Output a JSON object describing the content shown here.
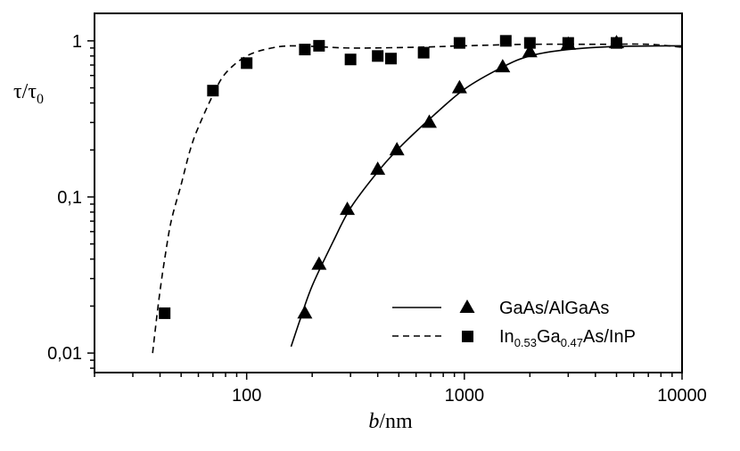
{
  "chart_data": {
    "type": "scatter",
    "xscale": "log",
    "yscale": "log",
    "xlim": [
      20,
      10000
    ],
    "ylim": [
      0.0075,
      1.5
    ],
    "xlabel": {
      "italic": "b",
      "rest": "/nm"
    },
    "ylabel": {
      "a": "τ/τ",
      "sub": "0"
    },
    "xticks": [
      {
        "value": 100,
        "label": "100"
      },
      {
        "value": 1000,
        "label": "1000"
      },
      {
        "value": 10000,
        "label": "10000"
      }
    ],
    "yticks": [
      {
        "value": 0.01,
        "label": "0,01"
      },
      {
        "value": 0.1,
        "label": "0,1"
      },
      {
        "value": 1,
        "label": "1"
      }
    ],
    "legend_position": "bottom-right",
    "series": [
      {
        "legend": {
          "text": "GaAs/AlGaAs"
        },
        "marker": "triangle",
        "line": "solid",
        "points": [
          {
            "x": 185,
            "y": 0.018
          },
          {
            "x": 215,
            "y": 0.037
          },
          {
            "x": 290,
            "y": 0.083
          },
          {
            "x": 400,
            "y": 0.15
          },
          {
            "x": 490,
            "y": 0.2
          },
          {
            "x": 690,
            "y": 0.3
          },
          {
            "x": 950,
            "y": 0.5
          },
          {
            "x": 1500,
            "y": 0.68
          },
          {
            "x": 2000,
            "y": 0.85
          },
          {
            "x": 3000,
            "y": 0.95
          },
          {
            "x": 5000,
            "y": 0.97
          }
        ],
        "curve": [
          {
            "x": 160,
            "y": 0.011
          },
          {
            "x": 175,
            "y": 0.016
          },
          {
            "x": 200,
            "y": 0.027
          },
          {
            "x": 250,
            "y": 0.052
          },
          {
            "x": 300,
            "y": 0.085
          },
          {
            "x": 400,
            "y": 0.145
          },
          {
            "x": 500,
            "y": 0.205
          },
          {
            "x": 700,
            "y": 0.32
          },
          {
            "x": 1000,
            "y": 0.49
          },
          {
            "x": 1500,
            "y": 0.68
          },
          {
            "x": 2000,
            "y": 0.8
          },
          {
            "x": 3000,
            "y": 0.88
          },
          {
            "x": 5000,
            "y": 0.92
          },
          {
            "x": 10000,
            "y": 0.93
          }
        ]
      },
      {
        "legend": {
          "a": "In",
          "s1": "0.53",
          "b": "Ga",
          "s2": "0.47",
          "c": "As/InP"
        },
        "marker": "square",
        "line": "dashed",
        "points": [
          {
            "x": 42,
            "y": 0.018
          },
          {
            "x": 70,
            "y": 0.48
          },
          {
            "x": 100,
            "y": 0.72
          },
          {
            "x": 185,
            "y": 0.88
          },
          {
            "x": 215,
            "y": 0.93
          },
          {
            "x": 300,
            "y": 0.76
          },
          {
            "x": 400,
            "y": 0.8
          },
          {
            "x": 460,
            "y": 0.77
          },
          {
            "x": 650,
            "y": 0.84
          },
          {
            "x": 950,
            "y": 0.97
          },
          {
            "x": 1550,
            "y": 1.0
          },
          {
            "x": 2000,
            "y": 0.97
          },
          {
            "x": 3000,
            "y": 0.97
          },
          {
            "x": 5000,
            "y": 0.97
          }
        ],
        "curve": [
          {
            "x": 37,
            "y": 0.01
          },
          {
            "x": 38,
            "y": 0.014
          },
          {
            "x": 40,
            "y": 0.025
          },
          {
            "x": 42,
            "y": 0.04
          },
          {
            "x": 45,
            "y": 0.07
          },
          {
            "x": 50,
            "y": 0.12
          },
          {
            "x": 55,
            "y": 0.2
          },
          {
            "x": 60,
            "y": 0.28
          },
          {
            "x": 70,
            "y": 0.45
          },
          {
            "x": 80,
            "y": 0.62
          },
          {
            "x": 100,
            "y": 0.8
          },
          {
            "x": 130,
            "y": 0.9
          },
          {
            "x": 170,
            "y": 0.93
          },
          {
            "x": 300,
            "y": 0.9
          },
          {
            "x": 600,
            "y": 0.91
          },
          {
            "x": 1000,
            "y": 0.93
          },
          {
            "x": 2000,
            "y": 0.95
          },
          {
            "x": 4000,
            "y": 0.95
          },
          {
            "x": 7000,
            "y": 0.95
          },
          {
            "x": 10000,
            "y": 0.91
          }
        ]
      }
    ]
  }
}
